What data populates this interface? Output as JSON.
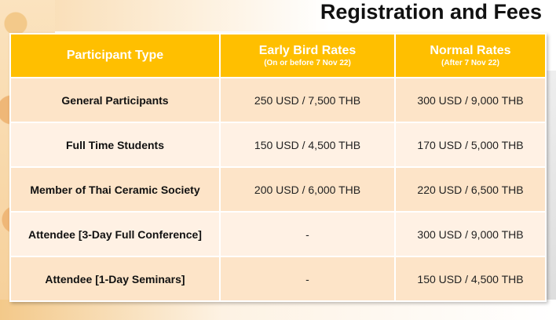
{
  "title": "Registration and Fees",
  "table": {
    "headers": [
      {
        "main": "Participant Type",
        "sub": ""
      },
      {
        "main": "Early Bird Rates",
        "sub": "(On or before 7 Nov 22)"
      },
      {
        "main": "Normal Rates",
        "sub": "(After 7 Nov 22)"
      }
    ],
    "rows": [
      {
        "type": "General Participants",
        "early": "250 USD / 7,500 THB",
        "normal": "300 USD / 9,000 THB"
      },
      {
        "type": "Full Time Students",
        "early": "150 USD / 4,500 THB",
        "normal": "170 USD / 5,000 THB"
      },
      {
        "type": "Member of Thai Ceramic Society",
        "early": "200 USD / 6,000 THB",
        "normal": "220 USD / 6,500 THB"
      },
      {
        "type": "Attendee [3-Day Full Conference]",
        "early": "-",
        "normal": "300 USD / 9,000 THB"
      },
      {
        "type": "Attendee [1-Day Seminars]",
        "early": "-",
        "normal": "150 USD / 4,500 THB"
      }
    ]
  },
  "colors": {
    "header": "#ffbf00",
    "row_odd": "#fde4c8",
    "row_even": "#fff1e4"
  }
}
